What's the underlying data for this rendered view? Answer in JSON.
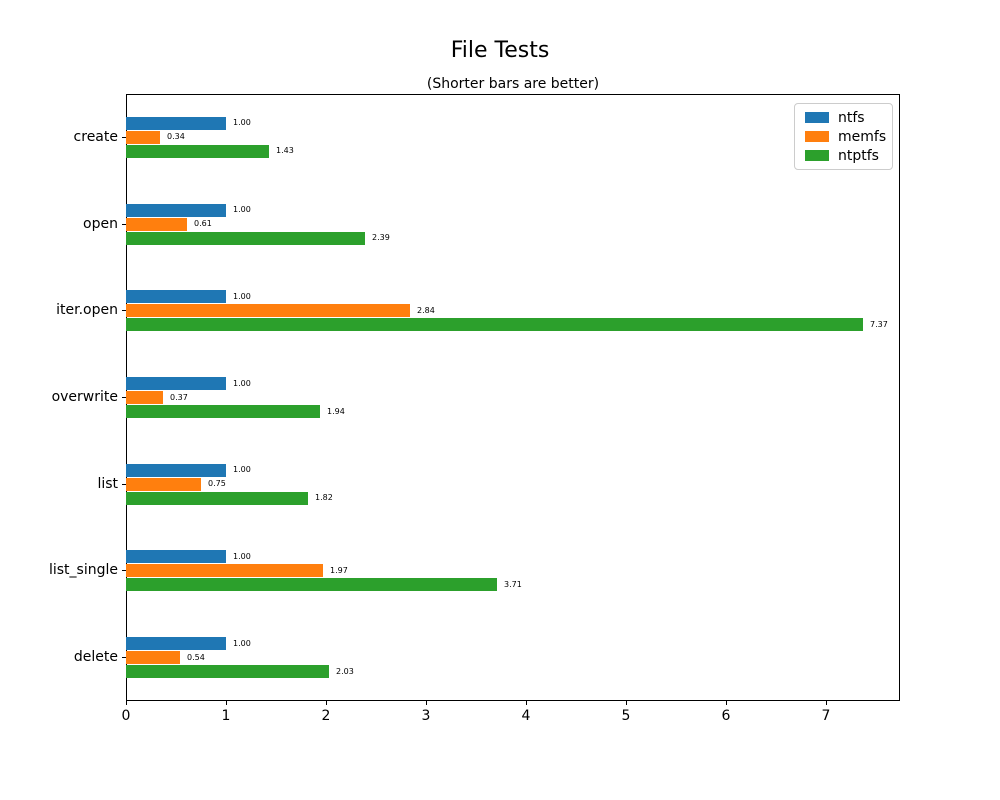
{
  "chart_data": {
    "type": "bar",
    "orientation": "horizontal",
    "title": "File Tests",
    "subtitle": "(Shorter bars are better)",
    "categories": [
      "create",
      "open",
      "iter.open",
      "overwrite",
      "list",
      "list_single",
      "delete"
    ],
    "series": [
      {
        "name": "ntfs",
        "color": "#1f77b4",
        "values": [
          1.0,
          1.0,
          1.0,
          1.0,
          1.0,
          1.0,
          1.0
        ]
      },
      {
        "name": "memfs",
        "color": "#ff7f0e",
        "values": [
          0.34,
          0.61,
          2.84,
          0.37,
          0.75,
          1.97,
          0.54
        ]
      },
      {
        "name": "ntptfs",
        "color": "#2ca02c",
        "values": [
          1.43,
          2.39,
          7.37,
          1.94,
          1.82,
          3.71,
          2.03
        ]
      }
    ],
    "xticks": [
      0,
      1,
      2,
      3,
      4,
      5,
      6,
      7
    ],
    "xlim": [
      0,
      7.74
    ],
    "ylabel": "",
    "xlabel": "",
    "grid": false,
    "legend_position": "upper right",
    "value_label_decimals": 2,
    "background_color": "#ffffff",
    "text_color": "#000000"
  }
}
